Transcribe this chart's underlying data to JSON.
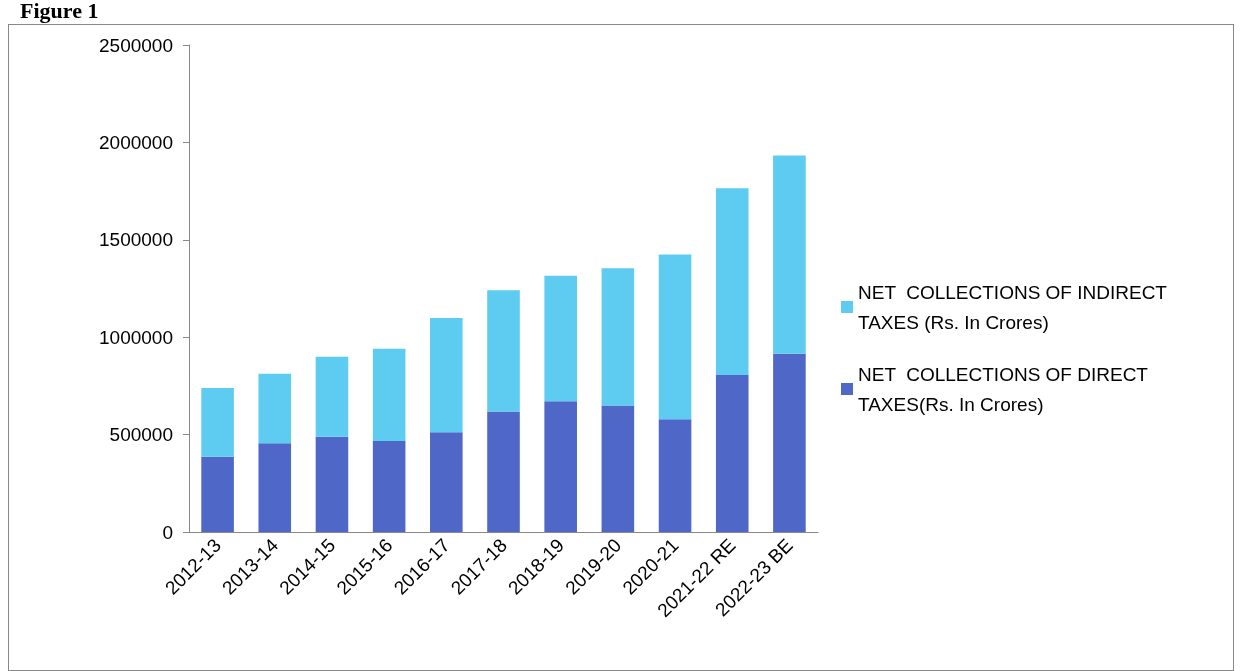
{
  "chart_data": {
    "type": "bar",
    "title": "Figure 1",
    "stacked": true,
    "categories": [
      "2012-13",
      "2013-14",
      "2014-15",
      "2015-16",
      "2016-17",
      "2017-18",
      "2018-19",
      "2019-20",
      "2020-21",
      "2021-22 RE",
      "2022-23 BE"
    ],
    "series": [
      {
        "name": "NET  COLLECTIONS OF DIRECT TAXES(Rs. In Crores)",
        "color": "#4f67c7",
        "values": [
          386000,
          456000,
          489000,
          467000,
          512000,
          619000,
          671000,
          649000,
          579000,
          806000,
          915000
        ]
      },
      {
        "name": "NET  COLLECTIONS OF INDIRECT TAXES (Rs. In Crores)",
        "color": "#5ecbf1",
        "values": [
          353000,
          356000,
          411000,
          474000,
          587000,
          622000,
          645000,
          705000,
          846000,
          958000,
          1018000
        ]
      }
    ],
    "ylim": [
      0,
      2500000
    ],
    "yticks": [
      0,
      500000,
      1000000,
      1500000,
      2000000,
      2500000
    ],
    "grid": false,
    "legend": "right"
  }
}
